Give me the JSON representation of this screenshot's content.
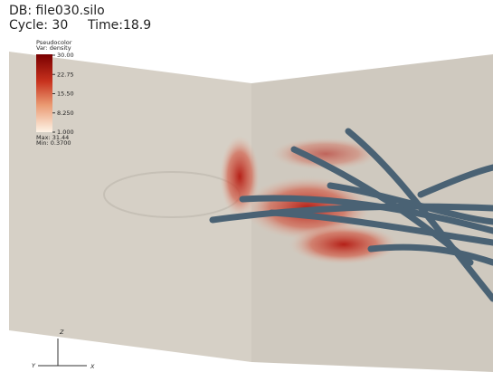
{
  "header": {
    "database": "DB: file030.silo",
    "cycle": "Cycle: 30",
    "time": "Time:18.9"
  },
  "legend": {
    "plot": "Pseudocolor",
    "variable": "Var: density",
    "ticks": [
      "30.00",
      "22.75",
      "15.50",
      "8.250",
      "1.000"
    ],
    "max": "Max: 31.44",
    "min": "Min: 0.3700"
  },
  "axes": {
    "z": "Z",
    "y": "Y",
    "x": "X"
  }
}
